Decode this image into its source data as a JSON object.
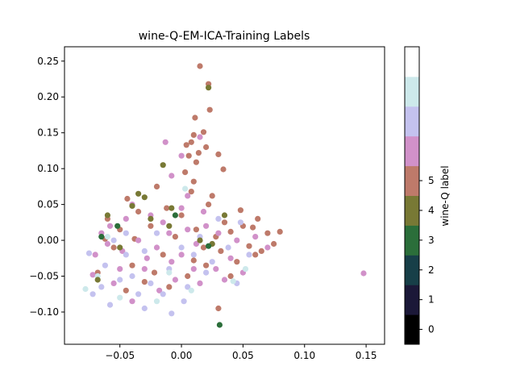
{
  "chart_data": {
    "type": "scatter",
    "title": "wine-Q-EM-ICA-Training Labels",
    "xlabel": "",
    "ylabel": "",
    "xlim": [
      -0.095,
      0.165
    ],
    "ylim": [
      -0.145,
      0.27
    ],
    "x_ticks": [
      -0.05,
      0.0,
      0.05,
      0.1,
      0.15
    ],
    "x_tick_labels": [
      "−0.05",
      "0.00",
      "0.05",
      "0.10",
      "0.15"
    ],
    "y_ticks": [
      -0.1,
      -0.05,
      0.0,
      0.05,
      0.1,
      0.15,
      0.2,
      0.25
    ],
    "y_tick_labels": [
      "−0.10",
      "−0.05",
      "0.00",
      "0.05",
      "0.10",
      "0.15",
      "0.20",
      "0.25"
    ],
    "grid": false,
    "colormap": "cubehelix",
    "colorbar": {
      "label": "wine-Q label",
      "ticks": [
        0,
        1,
        2,
        3,
        4,
        5
      ],
      "tick_labels": [
        "0",
        "1",
        "2",
        "3",
        "4",
        "5"
      ],
      "range": [
        0,
        9
      ],
      "colors": [
        "#000000",
        "#1b1838",
        "#173f48",
        "#2b6e3a",
        "#787935",
        "#be7a6a",
        "#d191c9",
        "#c4c2ef",
        "#cde9eb",
        "#ffffff"
      ]
    },
    "series": [
      {
        "label": 5,
        "color": "#be7a6a",
        "points": [
          [
            0.015,
            0.243
          ],
          [
            0.022,
            0.218
          ],
          [
            0.023,
            0.182
          ],
          [
            0.011,
            0.171
          ],
          [
            0.018,
            0.151
          ],
          [
            0.01,
            0.147
          ],
          [
            0.008,
            0.137
          ],
          [
            0.02,
            0.13
          ],
          [
            0.004,
            0.133
          ],
          [
            0.014,
            0.122
          ],
          [
            0.03,
            0.12
          ],
          [
            0.006,
            0.118
          ],
          [
            0.012,
            0.109
          ],
          [
            0.034,
            0.099
          ],
          [
            0.003,
            0.095
          ],
          [
            0.01,
            0.082
          ],
          [
            -0.02,
            0.075
          ],
          [
            0.008,
            0.068
          ],
          [
            0.025,
            0.062
          ],
          [
            -0.044,
            0.058
          ],
          [
            -0.035,
            0.04
          ],
          [
            -0.06,
            0.03
          ],
          [
            -0.062,
            0.002
          ],
          [
            -0.055,
            -0.01
          ],
          [
            -0.068,
            -0.045
          ],
          [
            -0.04,
            -0.035
          ],
          [
            -0.022,
            -0.045
          ],
          [
            -0.015,
            -0.02
          ],
          [
            0.0,
            0.035
          ],
          [
            0.012,
            0.015
          ],
          [
            0.035,
            0.025
          ],
          [
            0.05,
            0.02
          ],
          [
            0.062,
            0.03
          ],
          [
            0.07,
            0.01
          ],
          [
            0.075,
            -0.005
          ],
          [
            0.06,
            -0.02
          ],
          [
            0.045,
            -0.03
          ],
          [
            0.04,
            -0.05
          ],
          [
            0.03,
            -0.095
          ],
          [
            0.02,
            -0.035
          ],
          [
            0.005,
            -0.05
          ],
          [
            -0.01,
            -0.065
          ],
          [
            -0.03,
            -0.058
          ],
          [
            -0.045,
            -0.07
          ],
          [
            -0.025,
            0.02
          ],
          [
            -0.005,
            0.005
          ],
          [
            0.018,
            -0.01
          ],
          [
            0.028,
            0.005
          ],
          [
            0.04,
            0.012
          ],
          [
            0.055,
            -0.008
          ],
          [
            0.065,
            -0.015
          ],
          [
            0.08,
            0.012
          ],
          [
            -0.05,
            0.015
          ],
          [
            -0.038,
            0.002
          ],
          [
            -0.012,
            0.045
          ],
          [
            0.022,
            0.05
          ],
          [
            0.048,
            0.042
          ],
          [
            0.058,
            0.018
          ],
          [
            0.032,
            -0.015
          ],
          [
            0.01,
            -0.028
          ]
        ]
      },
      {
        "label": 6,
        "color": "#d191c9",
        "points": [
          [
            0.148,
            -0.046
          ],
          [
            0.015,
            0.144
          ],
          [
            0.0,
            0.118
          ],
          [
            -0.013,
            0.137
          ],
          [
            -0.008,
            0.09
          ],
          [
            0.005,
            0.062
          ],
          [
            -0.025,
            0.035
          ],
          [
            -0.045,
            0.03
          ],
          [
            -0.06,
            -0.005
          ],
          [
            -0.07,
            -0.02
          ],
          [
            -0.072,
            -0.048
          ],
          [
            -0.05,
            -0.04
          ],
          [
            -0.03,
            -0.04
          ],
          [
            -0.02,
            -0.01
          ],
          [
            -0.01,
            0.01
          ],
          [
            0.0,
            -0.02
          ],
          [
            0.01,
            -0.04
          ],
          [
            0.02,
            0.02
          ],
          [
            0.03,
            0.01
          ],
          [
            0.045,
            0.0
          ],
          [
            0.05,
            -0.045
          ],
          [
            0.035,
            -0.055
          ],
          [
            0.015,
            -0.06
          ],
          [
            -0.005,
            -0.055
          ],
          [
            -0.04,
            -0.085
          ],
          [
            -0.055,
            -0.06
          ],
          [
            -0.035,
            0.0
          ],
          [
            -0.015,
            0.025
          ],
          [
            0.005,
            0.015
          ],
          [
            0.025,
            -0.005
          ],
          [
            0.04,
            -0.025
          ],
          [
            0.06,
            0.005
          ],
          [
            0.07,
            -0.01
          ],
          [
            -0.065,
            0.01
          ],
          [
            -0.048,
            -0.015
          ],
          [
            -0.028,
            -0.025
          ],
          [
            -0.008,
            -0.03
          ],
          [
            0.012,
            -0.005
          ],
          [
            0.028,
            -0.04
          ],
          [
            -0.018,
            -0.07
          ],
          [
            0.0,
            0.045
          ],
          [
            -0.04,
            0.05
          ],
          [
            0.018,
            0.04
          ],
          [
            -0.058,
            0.02
          ]
        ]
      },
      {
        "label": 7,
        "color": "#c4c2ef",
        "points": [
          [
            -0.075,
            -0.018
          ],
          [
            -0.072,
            -0.075
          ],
          [
            -0.058,
            -0.09
          ],
          [
            -0.03,
            -0.095
          ],
          [
            -0.008,
            -0.102
          ],
          [
            -0.062,
            -0.035
          ],
          [
            -0.055,
            0.0
          ],
          [
            -0.045,
            -0.02
          ],
          [
            -0.04,
            -0.05
          ],
          [
            -0.025,
            -0.06
          ],
          [
            -0.015,
            -0.075
          ],
          [
            0.005,
            -0.065
          ],
          [
            0.02,
            -0.045
          ],
          [
            0.045,
            -0.06
          ],
          [
            0.055,
            -0.02
          ],
          [
            0.048,
            0.025
          ],
          [
            0.03,
            0.03
          ],
          [
            0.01,
            -0.02
          ],
          [
            -0.01,
            -0.04
          ],
          [
            -0.03,
            -0.015
          ],
          [
            -0.05,
            -0.055
          ],
          [
            -0.02,
            0.01
          ],
          [
            0.0,
            -0.01
          ],
          [
            0.015,
            0.005
          ],
          [
            0.038,
            -0.01
          ],
          [
            -0.065,
            -0.065
          ],
          [
            -0.035,
            -0.075
          ],
          [
            0.002,
            -0.085
          ],
          [
            -0.045,
            0.01
          ],
          [
            0.025,
            -0.03
          ]
        ]
      },
      {
        "label": 8,
        "color": "#cde9eb",
        "points": [
          [
            -0.078,
            -0.068
          ],
          [
            -0.068,
            -0.05
          ],
          [
            0.042,
            -0.057
          ],
          [
            0.052,
            -0.04
          ],
          [
            -0.05,
            -0.08
          ],
          [
            -0.02,
            -0.085
          ],
          [
            0.008,
            -0.07
          ],
          [
            -0.06,
            0.005
          ],
          [
            0.003,
            0.072
          ],
          [
            -0.01,
            -0.045
          ]
        ]
      },
      {
        "label": 4,
        "color": "#787935",
        "points": [
          [
            0.022,
            0.213
          ],
          [
            -0.015,
            0.105
          ],
          [
            -0.035,
            0.065
          ],
          [
            -0.03,
            0.06
          ],
          [
            -0.04,
            0.048
          ],
          [
            -0.06,
            0.035
          ],
          [
            -0.025,
            0.03
          ],
          [
            -0.008,
            0.045
          ],
          [
            0.015,
            0.0
          ],
          [
            -0.05,
            -0.01
          ],
          [
            -0.068,
            -0.055
          ],
          [
            0.025,
            -0.005
          ],
          [
            -0.01,
            0.02
          ],
          [
            0.035,
            0.035
          ]
        ]
      },
      {
        "label": 3,
        "color": "#2b6e3a",
        "points": [
          [
            0.031,
            -0.118
          ],
          [
            -0.052,
            0.02
          ],
          [
            -0.005,
            0.035
          ],
          [
            -0.065,
            0.005
          ],
          [
            0.022,
            -0.008
          ]
        ]
      }
    ]
  }
}
